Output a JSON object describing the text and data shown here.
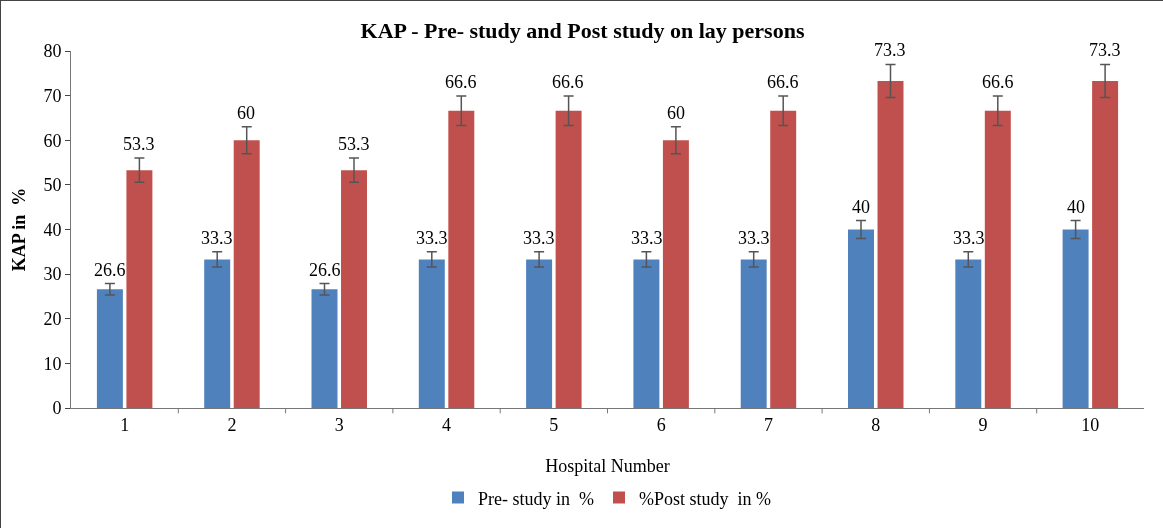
{
  "chart_data": {
    "type": "bar",
    "title": "KAP - Pre- study and Post study on lay persons",
    "xlabel": "Hospital Number",
    "ylabel": "KAP in  %",
    "categories": [
      "1",
      "2",
      "3",
      "4",
      "5",
      "6",
      "7",
      "8",
      "9",
      "10"
    ],
    "series": [
      {
        "name": "Pre- study in  %",
        "color": "#4f81bd",
        "values": [
          26.6,
          33.3,
          26.6,
          33.3,
          33.3,
          33.3,
          33.3,
          40,
          33.3,
          40
        ],
        "errors": [
          1.3,
          1.7,
          1.3,
          1.7,
          1.7,
          1.7,
          1.7,
          2,
          1.7,
          2
        ]
      },
      {
        "name": "%Post study  in %",
        "color": "#c0504d",
        "values": [
          53.3,
          60,
          53.3,
          66.6,
          66.6,
          60,
          66.6,
          73.3,
          66.6,
          73.3
        ],
        "errors": [
          2.7,
          3,
          2.7,
          3.3,
          3.3,
          3,
          3.3,
          3.7,
          3.3,
          3.7
        ]
      }
    ],
    "ylim": [
      0,
      80
    ],
    "yticks": [
      0,
      10,
      20,
      30,
      40,
      50,
      60,
      70,
      80
    ],
    "grid": false,
    "legend": "bottom",
    "data_labels": true
  }
}
